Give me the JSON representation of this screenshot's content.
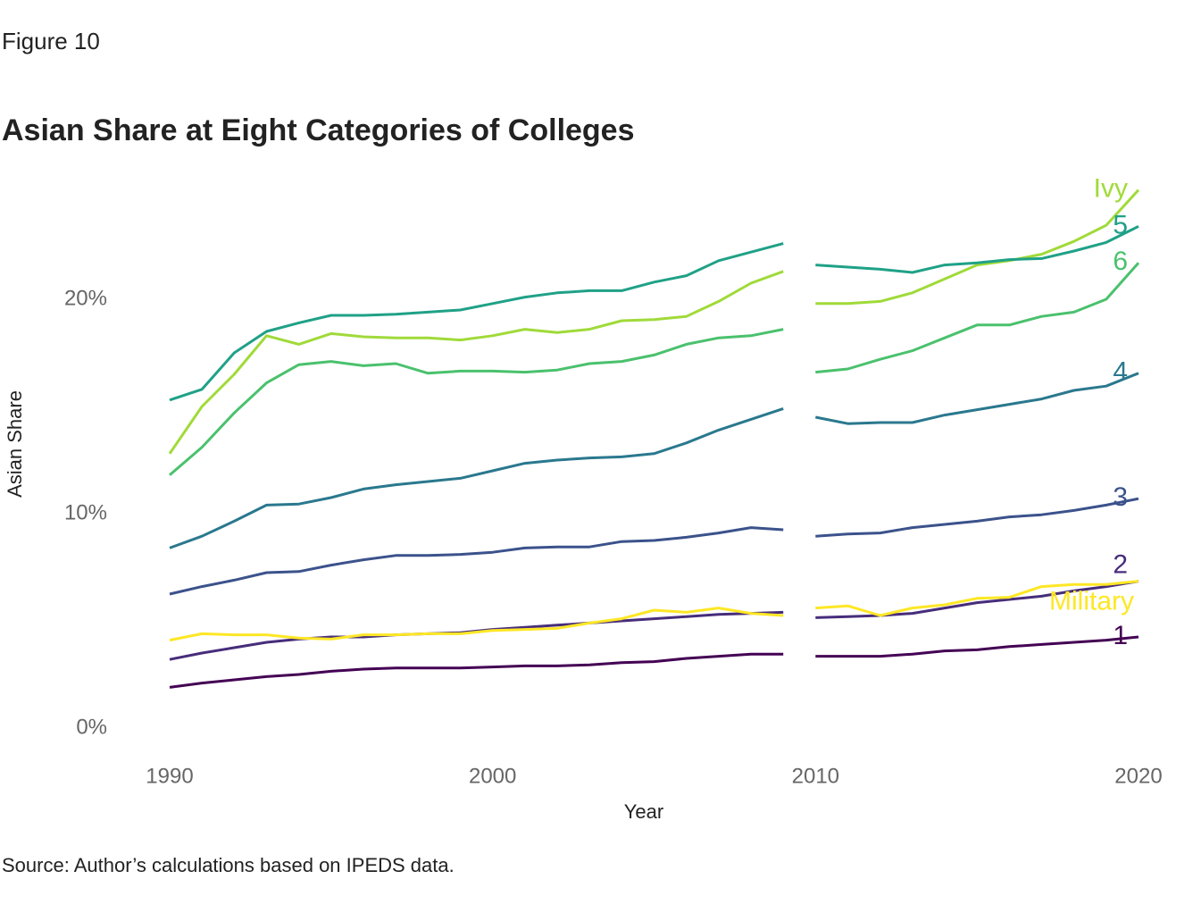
{
  "chart_data": {
    "type": "line",
    "figure_label": "Figure 10",
    "title": "Asian Share at Eight Categories of Colleges",
    "ylabel": "Asian Share",
    "xlabel": "Year",
    "source": "Source: Author’s calculations based on IPEDS data.",
    "x": [
      1990,
      1991,
      1992,
      1993,
      1994,
      1995,
      1996,
      1997,
      1998,
      1999,
      2000,
      2001,
      2002,
      2003,
      2004,
      2005,
      2006,
      2007,
      2008,
      2009,
      null,
      2010,
      2011,
      2012,
      2013,
      2014,
      2015,
      2016,
      2017,
      2018,
      2019,
      2020
    ],
    "series": [
      {
        "name": "Ivy",
        "color": "#a0da39",
        "values": [
          12.8,
          15.0,
          16.5,
          18.3,
          17.9,
          18.4,
          18.25,
          18.2,
          18.2,
          18.1,
          18.3,
          18.6,
          18.45,
          18.6,
          19.0,
          19.05,
          19.2,
          19.9,
          20.75,
          21.3,
          null,
          19.8,
          19.8,
          19.9,
          20.3,
          20.95,
          21.6,
          21.8,
          22.1,
          22.7,
          23.45,
          25.1
        ]
      },
      {
        "name": "5",
        "color": "#1fa187",
        "values": [
          15.3,
          15.8,
          17.5,
          18.5,
          18.9,
          19.25,
          19.25,
          19.3,
          19.4,
          19.5,
          19.8,
          20.1,
          20.3,
          20.4,
          20.4,
          20.8,
          21.1,
          21.8,
          22.2,
          22.6,
          null,
          21.6,
          21.5,
          21.4,
          21.25,
          21.6,
          21.7,
          21.85,
          21.9,
          22.25,
          22.65,
          23.4
        ]
      },
      {
        "name": "6",
        "color": "#4ac16d",
        "values": [
          11.8,
          13.1,
          14.7,
          16.1,
          16.95,
          17.1,
          16.9,
          17.0,
          16.55,
          16.65,
          16.65,
          16.6,
          16.7,
          17.0,
          17.1,
          17.4,
          17.9,
          18.2,
          18.3,
          18.6,
          null,
          16.6,
          16.75,
          17.2,
          17.6,
          18.2,
          18.8,
          18.8,
          19.2,
          19.4,
          20.0,
          21.7
        ]
      },
      {
        "name": "4",
        "color": "#2a788e",
        "values": [
          8.4,
          8.95,
          9.65,
          10.4,
          10.45,
          10.75,
          11.15,
          11.35,
          11.5,
          11.65,
          12.0,
          12.35,
          12.5,
          12.6,
          12.65,
          12.8,
          13.3,
          13.9,
          14.4,
          14.9,
          null,
          14.5,
          14.2,
          14.25,
          14.25,
          14.6,
          14.85,
          15.1,
          15.35,
          15.75,
          15.95,
          16.55
        ]
      },
      {
        "name": "3",
        "color": "#3b528b",
        "values": [
          6.25,
          6.6,
          6.9,
          7.25,
          7.3,
          7.6,
          7.85,
          8.05,
          8.05,
          8.1,
          8.2,
          8.4,
          8.45,
          8.45,
          8.7,
          8.75,
          8.9,
          9.1,
          9.35,
          9.25,
          null,
          8.95,
          9.05,
          9.1,
          9.35,
          9.5,
          9.65,
          9.85,
          9.95,
          10.15,
          10.4,
          10.7
        ]
      },
      {
        "name": "2",
        "color": "#472d7b",
        "values": [
          3.2,
          3.5,
          3.75,
          4.0,
          4.15,
          4.25,
          4.25,
          4.35,
          4.4,
          4.45,
          4.6,
          4.7,
          4.8,
          4.9,
          5.0,
          5.1,
          5.2,
          5.3,
          5.35,
          5.4,
          null,
          5.15,
          5.2,
          5.25,
          5.35,
          5.6,
          5.85,
          6.0,
          6.15,
          6.4,
          6.6,
          6.85
        ]
      },
      {
        "name": "Military",
        "color": "#fde725",
        "values": [
          4.1,
          4.4,
          4.35,
          4.35,
          4.2,
          4.15,
          4.35,
          4.35,
          4.4,
          4.4,
          4.55,
          4.6,
          4.65,
          4.9,
          5.1,
          5.5,
          5.4,
          5.6,
          5.35,
          5.25,
          null,
          5.6,
          5.7,
          5.25,
          5.6,
          5.75,
          6.05,
          6.1,
          6.6,
          6.7,
          6.7,
          6.85
        ]
      },
      {
        "name": "1",
        "color": "#440154",
        "values": [
          1.9,
          2.1,
          2.25,
          2.4,
          2.5,
          2.65,
          2.75,
          2.8,
          2.8,
          2.8,
          2.85,
          2.9,
          2.9,
          2.95,
          3.05,
          3.1,
          3.25,
          3.35,
          3.45,
          3.45,
          null,
          3.35,
          3.35,
          3.35,
          3.45,
          3.6,
          3.65,
          3.8,
          3.9,
          4.0,
          4.1,
          4.25
        ]
      }
    ],
    "xlim": [
      1990,
      2020
    ],
    "xticks": [
      1990,
      2000,
      2010,
      2020
    ],
    "ylim": [
      -1,
      26
    ],
    "yticks": [
      {
        "value": 0,
        "label": "0%"
      },
      {
        "value": 10,
        "label": "10%"
      },
      {
        "value": 20,
        "label": "20%"
      }
    ],
    "grid": false,
    "legend": "direct"
  }
}
